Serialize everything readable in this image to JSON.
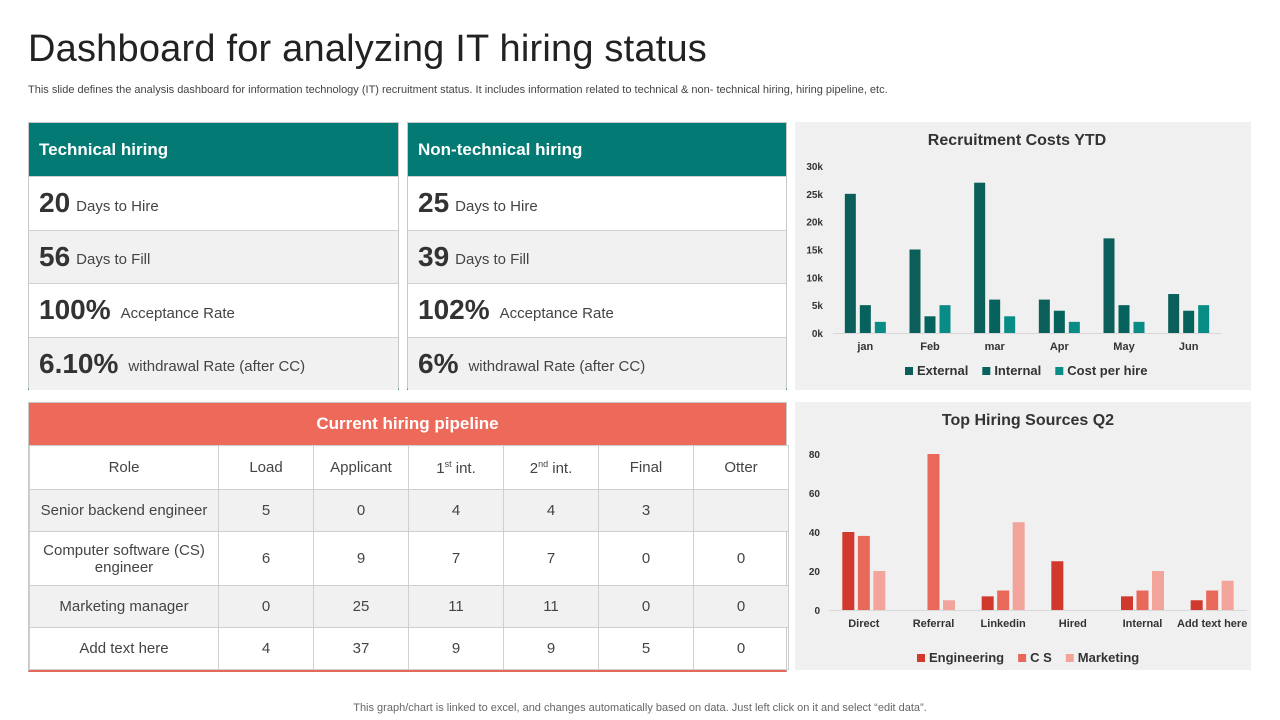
{
  "header": {
    "title": "Dashboard for analyzing IT hiring status",
    "subtitle": "This slide defines the analysis dashboard for information technology (IT) recruitment status. It includes information related to technical & non- technical hiring, hiring pipeline, etc."
  },
  "technical": {
    "title": "Technical hiring",
    "metrics": [
      {
        "value": "20",
        "label": "Days to Hire"
      },
      {
        "value": "56",
        "label": "Days to Fill"
      },
      {
        "value": "100%",
        "label": "Acceptance Rate"
      },
      {
        "value": "6.10%",
        "label": "withdrawal Rate (after CC)"
      }
    ]
  },
  "nontechnical": {
    "title": "Non-technical hiring",
    "metrics": [
      {
        "value": "25",
        "label": "Days to Hire"
      },
      {
        "value": "39",
        "label": "Days to Fill"
      },
      {
        "value": "102%",
        "label": "Acceptance Rate"
      },
      {
        "value": "6%",
        "label": "withdrawal Rate (after CC)"
      }
    ]
  },
  "pipeline": {
    "title": "Current hiring pipeline",
    "columns": [
      "Role",
      "Load",
      "Applicant",
      "1",
      "2",
      "Final",
      "Otter"
    ],
    "sup": [
      "st",
      "nd"
    ],
    "sup_suffix": " int.",
    "rows": [
      [
        "Senior backend engineer",
        "5",
        "0",
        "4",
        "4",
        "3",
        ""
      ],
      [
        "Computer software (CS) engineer",
        "6",
        "9",
        "7",
        "7",
        "0",
        "0"
      ],
      [
        "Marketing manager",
        "0",
        "25",
        "11",
        "11",
        "0",
        "0"
      ],
      [
        "Add text here",
        "4",
        "37",
        "9",
        "9",
        "5",
        "0"
      ]
    ]
  },
  "footer": "This graph/chart is linked to excel,  and changes automatically based on data. Just left click on it and select “edit data”.",
  "chart_data": [
    {
      "type": "bar",
      "title": "Recruitment Costs YTD",
      "categories": [
        "jan",
        "Feb",
        "mar",
        "Apr",
        "May",
        "Jun"
      ],
      "series": [
        {
          "name": "External",
          "color": "#0b5e59",
          "values": [
            25000,
            15000,
            27000,
            6000,
            17000,
            7000
          ]
        },
        {
          "name": "Internal",
          "color": "#06625c",
          "values": [
            5000,
            3000,
            6000,
            4000,
            5000,
            4000
          ]
        },
        {
          "name": "Cost per hire",
          "color": "#0a8c86",
          "values": [
            2000,
            5000,
            3000,
            2000,
            2000,
            5000
          ]
        }
      ],
      "ylim": [
        0,
        30000
      ],
      "yticks": [
        0,
        5000,
        10000,
        15000,
        20000,
        25000,
        30000
      ],
      "ytick_labels": [
        "0k",
        "5k",
        "10k",
        "15k",
        "20k",
        "25k",
        "30k"
      ],
      "legend": "bottom"
    },
    {
      "type": "bar",
      "title": "Top Hiring Sources Q2",
      "categories": [
        "Direct",
        "Referral",
        "Linkedin",
        "Hired",
        "Internal",
        "Add text here"
      ],
      "series": [
        {
          "name": "Engineering",
          "color": "#d0392b",
          "values": [
            40,
            0,
            7,
            25,
            7,
            5
          ]
        },
        {
          "name": "C S",
          "color": "#e8685a",
          "values": [
            38,
            80,
            10,
            0,
            10,
            10
          ]
        },
        {
          "name": "Marketing",
          "color": "#f2a49b",
          "values": [
            20,
            5,
            45,
            0,
            20,
            15
          ]
        }
      ],
      "ylim": [
        0,
        80
      ],
      "yticks": [
        0,
        20,
        40,
        60,
        80
      ],
      "ytick_labels": [
        "0",
        "20",
        "40",
        "60",
        "80"
      ],
      "legend": "bottom"
    }
  ]
}
